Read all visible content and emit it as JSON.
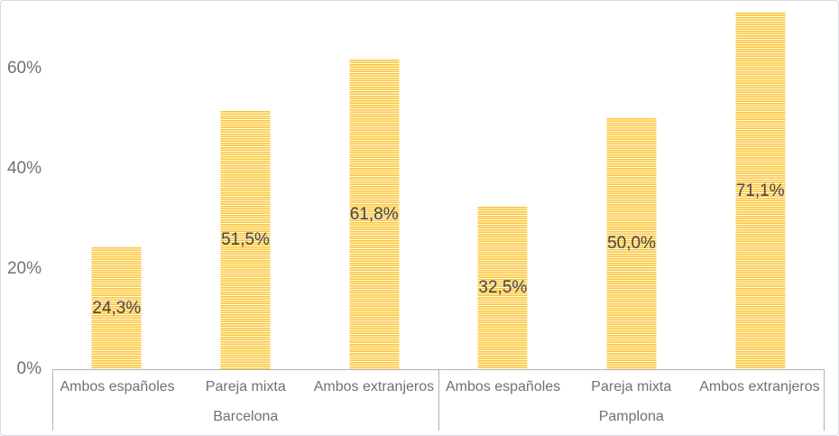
{
  "colors": {
    "bar_fill": "#fdc32e",
    "bar_stripe": "#ffffff",
    "data_label": "#45464e",
    "axis_text": "#717175",
    "axis_line": "#b3b3b3",
    "frame_border": "#d7dae0"
  },
  "chart_data": {
    "type": "bar",
    "title": "",
    "xlabel": "",
    "ylabel": "",
    "grid": false,
    "legend": false,
    "y_axis": {
      "tick_labels": [
        "0%",
        "20%",
        "40%",
        "60%"
      ],
      "tick_values": [
        0,
        20,
        40,
        60
      ],
      "ylim": [
        0,
        73.5
      ],
      "unit": "percent"
    },
    "groups": [
      {
        "label": "Barcelona",
        "categories": [
          "Ambos españoles",
          "Pareja mixta",
          "Ambos extranjeros"
        ],
        "values": [
          24.3,
          51.5,
          61.8
        ],
        "value_labels": [
          "24,3%",
          "51,5%",
          "61,8%"
        ]
      },
      {
        "label": "Pamplona",
        "categories": [
          "Ambos españoles",
          "Pareja mixta",
          "Ambos extranjeros"
        ],
        "values": [
          32.5,
          50.0,
          71.1
        ],
        "value_labels": [
          "32,5%",
          "50,0%",
          "71,1%"
        ]
      }
    ]
  }
}
